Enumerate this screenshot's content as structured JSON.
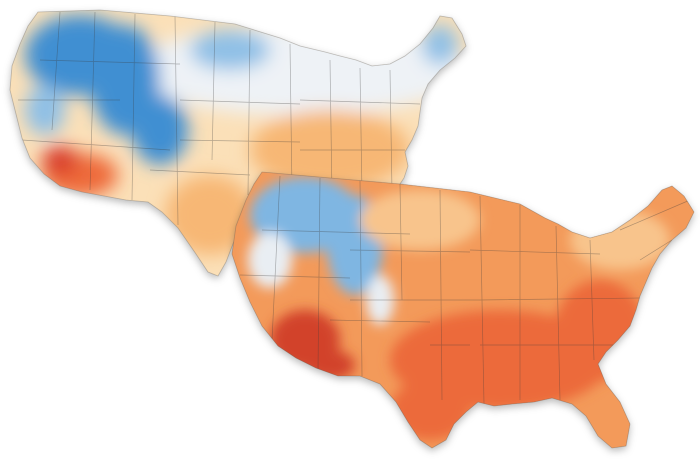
{
  "figure": {
    "maps": [
      {
        "id": "back",
        "palette": {
          "cold_deep": "#3f8fd2",
          "cold": "#8fc0e6",
          "neutral": "#eef2f6",
          "warm_light": "#fbe0b8",
          "warm": "#f7b774",
          "hot": "#ee6a3a",
          "hottest": "#d83a2a"
        }
      },
      {
        "id": "front",
        "palette": {
          "cold": "#7fb6e2",
          "neutral": "#e9eef3",
          "warm_light": "#f8c48c",
          "warm": "#f39a5a",
          "hot": "#ec6b3b",
          "hottest": "#d2432c"
        }
      }
    ]
  }
}
